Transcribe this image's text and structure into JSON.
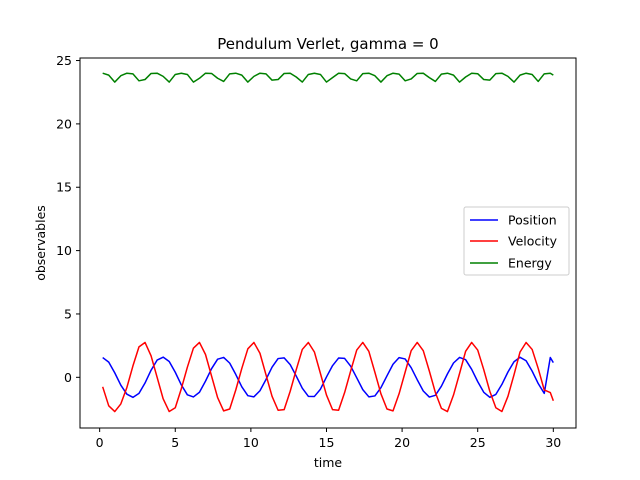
{
  "chart_data": {
    "type": "line",
    "title": "Pendulum Verlet, gamma = 0",
    "xlabel": "time",
    "ylabel": "observables",
    "xlim": [
      -1.3,
      31.5
    ],
    "ylim": [
      -4.0,
      25.2
    ],
    "xticks": [
      0,
      5,
      10,
      15,
      20,
      25,
      30
    ],
    "yticks": [
      0,
      5,
      10,
      15,
      20,
      25
    ],
    "grid": false,
    "legend_position": "center-right",
    "series": [
      {
        "name": "Position",
        "color": "#0000ff",
        "x": [
          0.2,
          0.6,
          1.0,
          1.4,
          1.8,
          2.2,
          2.6,
          3.0,
          3.4,
          3.8,
          4.2,
          4.6,
          5.0,
          5.4,
          5.8,
          6.2,
          6.6,
          7.0,
          7.4,
          7.8,
          8.2,
          8.6,
          9.0,
          9.4,
          9.8,
          10.2,
          10.6,
          11.0,
          11.4,
          11.8,
          12.2,
          12.6,
          13.0,
          13.4,
          13.8,
          14.2,
          14.6,
          15.0,
          15.4,
          15.8,
          16.2,
          16.6,
          17.0,
          17.4,
          17.8,
          18.2,
          18.6,
          19.0,
          19.4,
          19.8,
          20.2,
          20.6,
          21.0,
          21.4,
          21.8,
          22.2,
          22.6,
          23.0,
          23.4,
          23.8,
          24.2,
          24.6,
          25.0,
          25.4,
          25.8,
          26.2,
          26.6,
          27.0,
          27.4,
          27.8,
          28.2,
          28.6,
          29.0,
          29.4,
          29.8,
          30.0
        ],
        "y": [
          1.56,
          1.2,
          0.35,
          -0.62,
          -1.33,
          -1.58,
          -1.27,
          -0.45,
          0.56,
          1.36,
          1.59,
          1.25,
          0.4,
          -0.6,
          -1.38,
          -1.55,
          -1.18,
          -0.3,
          0.68,
          1.43,
          1.57,
          1.12,
          0.23,
          -0.75,
          -1.45,
          -1.54,
          -1.06,
          -0.17,
          0.8,
          1.48,
          1.53,
          1.0,
          0.1,
          -0.86,
          -1.5,
          -1.51,
          -0.94,
          0.03,
          0.92,
          1.52,
          1.49,
          0.88,
          -0.04,
          -0.97,
          -1.54,
          -1.47,
          -0.82,
          0.12,
          1.03,
          1.55,
          1.45,
          0.76,
          -0.19,
          -1.08,
          -1.56,
          -1.42,
          -0.7,
          0.27,
          1.13,
          1.57,
          1.39,
          0.63,
          -0.34,
          -1.18,
          -1.58,
          -1.35,
          -0.56,
          0.42,
          1.23,
          1.58,
          1.31,
          0.49,
          -0.49,
          -1.27,
          1.56,
          1.16
        ]
      },
      {
        "name": "Velocity",
        "color": "#ff0000",
        "x": [
          0.2,
          0.6,
          1.0,
          1.4,
          1.8,
          2.2,
          2.6,
          3.0,
          3.4,
          3.8,
          4.2,
          4.6,
          5.0,
          5.4,
          5.8,
          6.2,
          6.6,
          7.0,
          7.4,
          7.8,
          8.2,
          8.6,
          9.0,
          9.4,
          9.8,
          10.2,
          10.6,
          11.0,
          11.4,
          11.8,
          12.2,
          12.6,
          13.0,
          13.4,
          13.8,
          14.2,
          14.6,
          15.0,
          15.4,
          15.8,
          16.2,
          16.6,
          17.0,
          17.4,
          17.8,
          18.2,
          18.6,
          19.0,
          19.4,
          19.8,
          20.2,
          20.6,
          21.0,
          21.4,
          21.8,
          22.2,
          22.6,
          23.0,
          23.4,
          23.8,
          24.2,
          24.6,
          25.0,
          25.4,
          25.8,
          26.2,
          26.6,
          27.0,
          27.4,
          27.8,
          28.2,
          28.6,
          29.0,
          29.4,
          29.8,
          30.0
        ],
        "y": [
          -0.75,
          -2.25,
          -2.7,
          -2.1,
          -0.8,
          0.9,
          2.4,
          2.75,
          1.7,
          0.0,
          -1.7,
          -2.7,
          -2.4,
          -0.9,
          0.8,
          2.3,
          2.75,
          1.8,
          0.1,
          -1.6,
          -2.65,
          -2.5,
          -1.0,
          0.7,
          2.25,
          2.75,
          1.9,
          0.2,
          -1.5,
          -2.6,
          -2.55,
          -1.1,
          0.6,
          2.2,
          2.75,
          2.0,
          0.3,
          -1.4,
          -2.55,
          -2.6,
          -1.2,
          0.5,
          2.15,
          2.75,
          2.05,
          0.4,
          -1.3,
          -2.5,
          -2.65,
          -1.3,
          0.4,
          2.1,
          2.75,
          2.1,
          0.5,
          -1.2,
          -2.45,
          -2.7,
          -1.4,
          0.3,
          2.05,
          2.75,
          2.15,
          0.6,
          -1.1,
          -2.4,
          -2.7,
          -1.5,
          0.2,
          2.0,
          2.75,
          2.2,
          0.7,
          -1.0,
          -1.2,
          -1.85
        ]
      },
      {
        "name": "Energy",
        "color": "#008000",
        "x": [
          0.2,
          0.6,
          1.0,
          1.4,
          1.8,
          2.2,
          2.6,
          3.0,
          3.4,
          3.8,
          4.2,
          4.6,
          5.0,
          5.4,
          5.8,
          6.2,
          6.6,
          7.0,
          7.4,
          7.8,
          8.2,
          8.6,
          9.0,
          9.4,
          9.8,
          10.2,
          10.6,
          11.0,
          11.4,
          11.8,
          12.2,
          12.6,
          13.0,
          13.4,
          13.8,
          14.2,
          14.6,
          15.0,
          15.4,
          15.8,
          16.2,
          16.6,
          17.0,
          17.4,
          17.8,
          18.2,
          18.6,
          19.0,
          19.4,
          19.8,
          20.2,
          20.6,
          21.0,
          21.4,
          21.8,
          22.2,
          22.6,
          23.0,
          23.4,
          23.8,
          24.2,
          24.6,
          25.0,
          25.4,
          25.8,
          26.2,
          26.6,
          27.0,
          27.4,
          27.8,
          28.2,
          28.6,
          29.0,
          29.4,
          29.8,
          30.0
        ],
        "y": [
          24.0,
          23.85,
          23.3,
          23.8,
          24.0,
          23.95,
          23.4,
          23.5,
          23.98,
          24.0,
          23.75,
          23.3,
          23.9,
          24.0,
          23.9,
          23.3,
          23.6,
          24.0,
          23.98,
          23.6,
          23.35,
          23.95,
          24.0,
          23.85,
          23.3,
          23.75,
          24.0,
          23.95,
          23.45,
          23.5,
          23.98,
          24.0,
          23.7,
          23.3,
          23.9,
          24.0,
          23.9,
          23.3,
          23.65,
          24.0,
          23.97,
          23.55,
          23.4,
          23.97,
          24.0,
          23.8,
          23.3,
          23.8,
          24.0,
          23.93,
          23.4,
          23.55,
          23.98,
          24.0,
          23.65,
          23.35,
          23.93,
          24.0,
          23.85,
          23.3,
          23.7,
          24.0,
          23.96,
          23.5,
          23.45,
          23.97,
          24.0,
          23.75,
          23.3,
          23.85,
          24.0,
          23.9,
          23.35,
          23.95,
          24.0,
          23.85
        ]
      }
    ]
  }
}
